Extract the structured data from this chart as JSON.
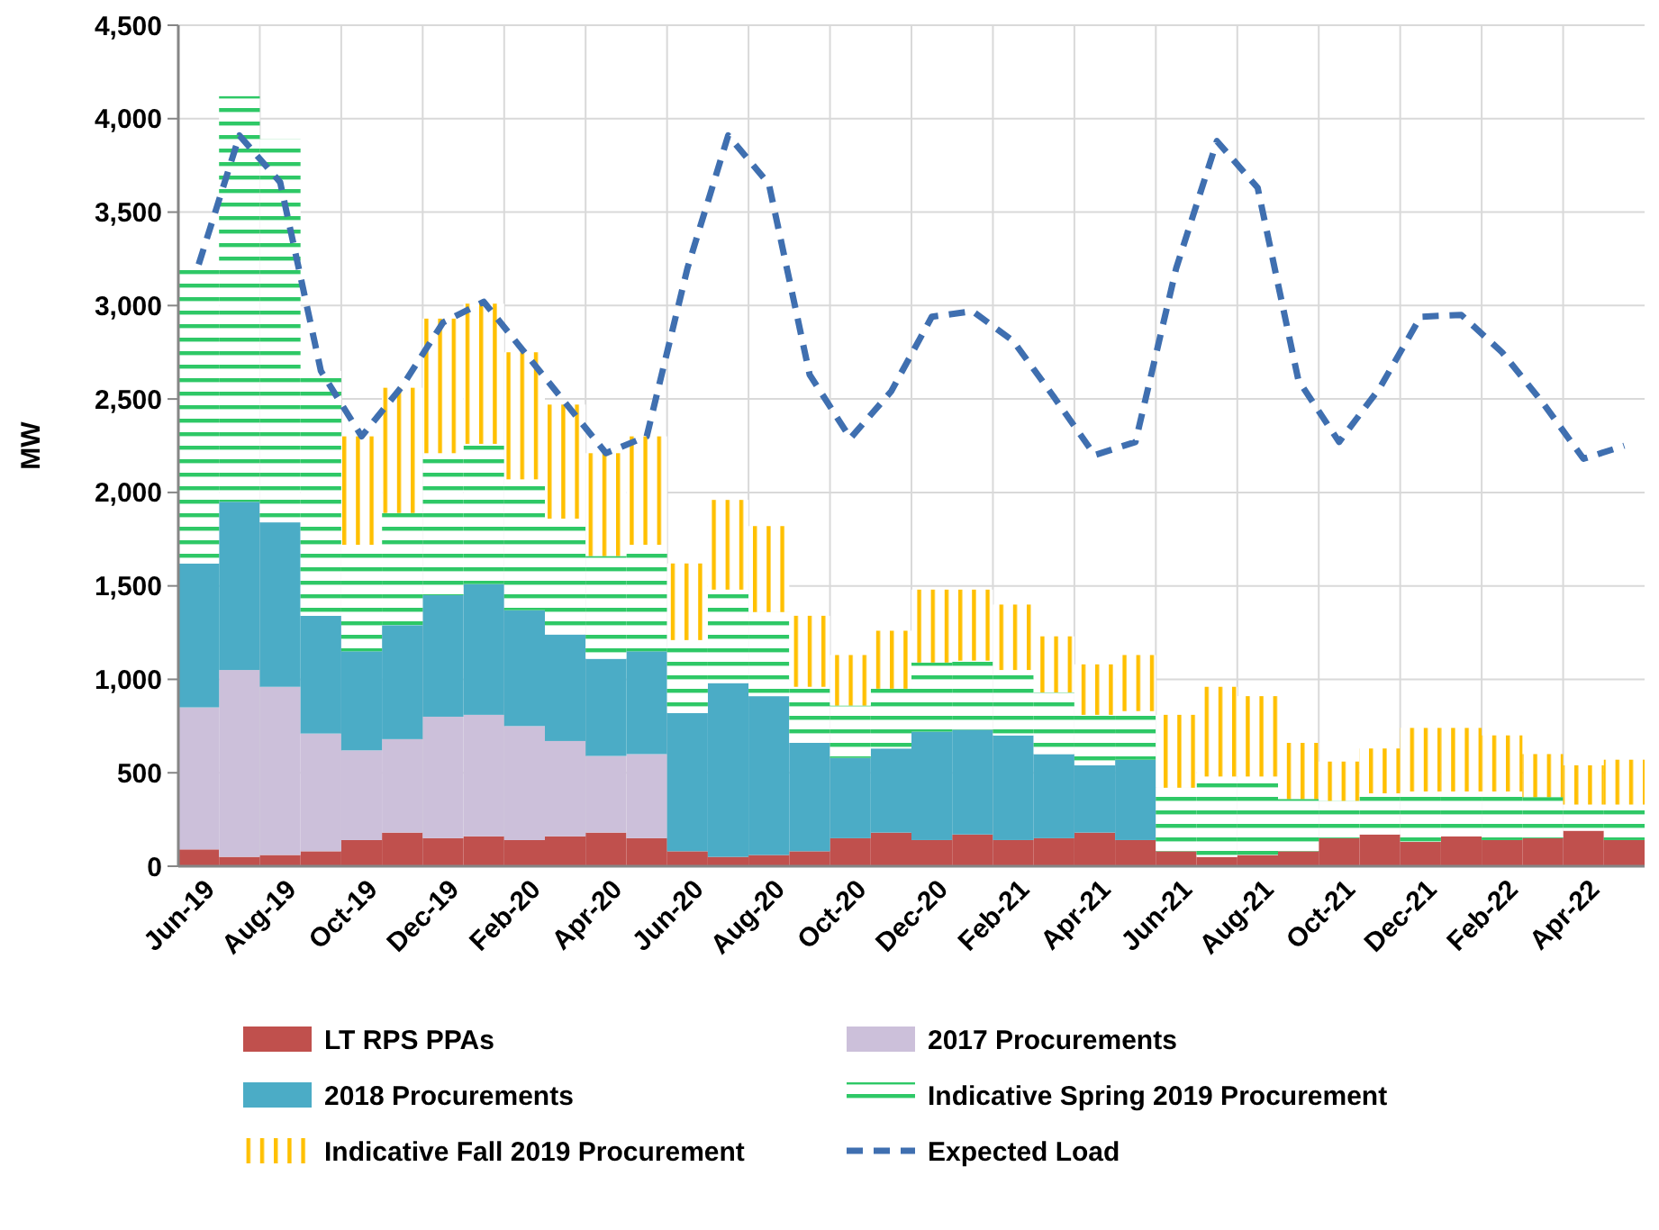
{
  "chart_data": {
    "type": "bar",
    "stacked": true,
    "ylabel": "MW",
    "categories": [
      "Jun-19",
      null,
      "Aug-19",
      null,
      "Oct-19",
      null,
      "Dec-19",
      null,
      "Feb-20",
      null,
      "Apr-20",
      null,
      "Jun-20",
      null,
      "Aug-20",
      null,
      "Oct-20",
      null,
      "Dec-20",
      null,
      "Feb-21",
      null,
      "Apr-21",
      null,
      "Jun-21",
      null,
      "Aug-21",
      null,
      "Oct-21",
      null,
      "Dec-21",
      null,
      "Feb-22",
      null,
      "Apr-22",
      null
    ],
    "ylim": [
      0,
      4500
    ],
    "yticks": [
      0,
      500,
      {
        "value": 1000,
        "label": "1,000"
      },
      {
        "value": 1500,
        "label": "1,500"
      },
      {
        "value": 2000,
        "label": "2,000"
      },
      {
        "value": 2500,
        "label": "2,500"
      },
      {
        "value": 3000,
        "label": "3,000"
      },
      {
        "value": 3500,
        "label": "3,500"
      },
      {
        "value": 4000,
        "label": "4,000"
      },
      {
        "value": 4500,
        "label": "4,500"
      }
    ],
    "grid": true,
    "legend": "bottom",
    "series": [
      {
        "name": "LT RPS PPAs",
        "color": "#c0504d",
        "values": [
          90,
          50,
          60,
          80,
          140,
          180,
          150,
          160,
          140,
          160,
          180,
          150,
          80,
          50,
          60,
          80,
          150,
          180,
          140,
          170,
          140,
          150,
          180,
          140,
          80,
          50,
          60,
          80,
          150,
          170,
          130,
          160,
          140,
          150,
          190,
          140
        ]
      },
      {
        "name": "2017 Procurements",
        "color": "#ccc0da",
        "values": [
          760,
          1000,
          900,
          630,
          480,
          500,
          650,
          650,
          610,
          510,
          410,
          450,
          0,
          0,
          0,
          0,
          0,
          0,
          0,
          0,
          0,
          0,
          0,
          0,
          0,
          0,
          0,
          0,
          0,
          0,
          0,
          0,
          0,
          0,
          0,
          0
        ]
      },
      {
        "name": "2018 Procurements",
        "color": "#4bacc6",
        "values": [
          770,
          900,
          880,
          630,
          530,
          610,
          650,
          700,
          620,
          570,
          520,
          550,
          740,
          930,
          850,
          580,
          430,
          450,
          580,
          560,
          560,
          450,
          360,
          430,
          0,
          0,
          0,
          0,
          0,
          0,
          0,
          0,
          0,
          0,
          0,
          0
        ]
      },
      {
        "name": "Indicative Spring 2019 Procurement",
        "color": "#2ec866",
        "values": [
          1580,
          2170,
          2050,
          1310,
          570,
          600,
          760,
          750,
          700,
          620,
          550,
          570,
          390,
          500,
          450,
          300,
          280,
          320,
          370,
          370,
          350,
          330,
          270,
          260,
          340,
          430,
          420,
          280,
          200,
          220,
          270,
          240,
          260,
          220,
          140,
          190
        ]
      },
      {
        "name": "Indicative Fall 2019 Procurement",
        "color": "#ffc000",
        "values": [
          0,
          0,
          0,
          0,
          580,
          670,
          720,
          750,
          680,
          610,
          550,
          580,
          410,
          480,
          460,
          380,
          270,
          310,
          390,
          380,
          350,
          300,
          270,
          300,
          390,
          480,
          430,
          300,
          210,
          240,
          340,
          340,
          300,
          230,
          210,
          240
        ]
      },
      {
        "name": "Expected Load",
        "type": "line",
        "color": "#3f6fb0",
        "line_style": "dashed",
        "marker": "none",
        "values": [
          3220,
          3910,
          3660,
          2650,
          2300,
          2570,
          2910,
          3020,
          2750,
          2480,
          2210,
          2300,
          3200,
          3910,
          3650,
          2630,
          2290,
          2540,
          2940,
          2970,
          2810,
          2510,
          2200,
          2270,
          3200,
          3880,
          3630,
          2600,
          2270,
          2560,
          2940,
          2950,
          2750,
          2480,
          2180,
          2250
        ]
      }
    ]
  }
}
